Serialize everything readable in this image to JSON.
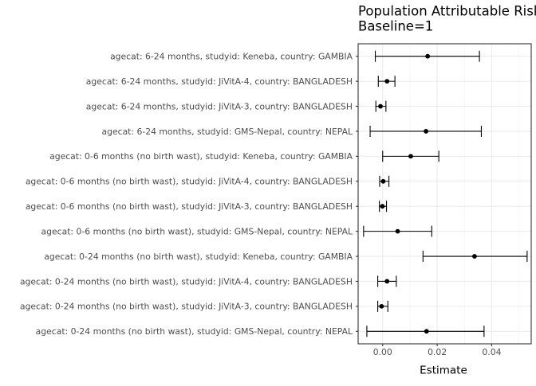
{
  "chart_data": {
    "type": "scatter",
    "subtype": "forest-plot",
    "title": "Population Attributable Risks",
    "subtitle": "Baseline=1",
    "xlabel": "Estimate",
    "ylabel": "",
    "xlim": [
      -0.009,
      0.0545
    ],
    "xticks": [
      0.0,
      0.02,
      0.04
    ],
    "xtick_labels": [
      "0.00",
      "0.02",
      "0.04"
    ],
    "grid": true,
    "theme": "bw",
    "point_color": "#000000",
    "categories": [
      "agecat: 6-24 months, studyid: Keneba, country: GAMBIA",
      "agecat: 6-24 months, studyid: JiVitA-4, country: BANGLADESH",
      "agecat: 6-24 months, studyid: JiVitA-3, country: BANGLADESH",
      "agecat: 6-24 months, studyid: GMS-Nepal, country: NEPAL",
      "agecat: 0-6 months (no birth wast), studyid: Keneba, country: GAMBIA",
      "agecat: 0-6 months (no birth wast), studyid: JiVitA-4, country: BANGLADESH",
      "agecat: 0-6 months (no birth wast), studyid: JiVitA-3, country: BANGLADESH",
      "agecat: 0-6 months (no birth wast), studyid: GMS-Nepal, country: NEPAL",
      "agecat: 0-24 months (no birth wast), studyid: Keneba, country: GAMBIA",
      "agecat: 0-24 months (no birth wast), studyid: JiVitA-4, country: BANGLADESH",
      "agecat: 0-24 months (no birth wast), studyid: JiVitA-3, country: BANGLADESH",
      "agecat: 0-24 months (no birth wast), studyid: GMS-Nepal, country: NEPAL"
    ],
    "estimates": [
      0.0165,
      0.0016,
      -0.0008,
      0.0159,
      0.0103,
      0.0002,
      -0.0001,
      0.0055,
      0.0337,
      0.0016,
      -0.0004,
      0.0161
    ],
    "ci_lower": [
      -0.0027,
      -0.0016,
      -0.0025,
      -0.0046,
      0.0,
      -0.0011,
      -0.0012,
      -0.007,
      0.0148,
      -0.0018,
      -0.0018,
      -0.0058
    ],
    "ci_upper": [
      0.0355,
      0.0045,
      0.0012,
      0.0362,
      0.0206,
      0.0023,
      0.0014,
      0.018,
      0.053,
      0.005,
      0.0019,
      0.0372
    ]
  }
}
